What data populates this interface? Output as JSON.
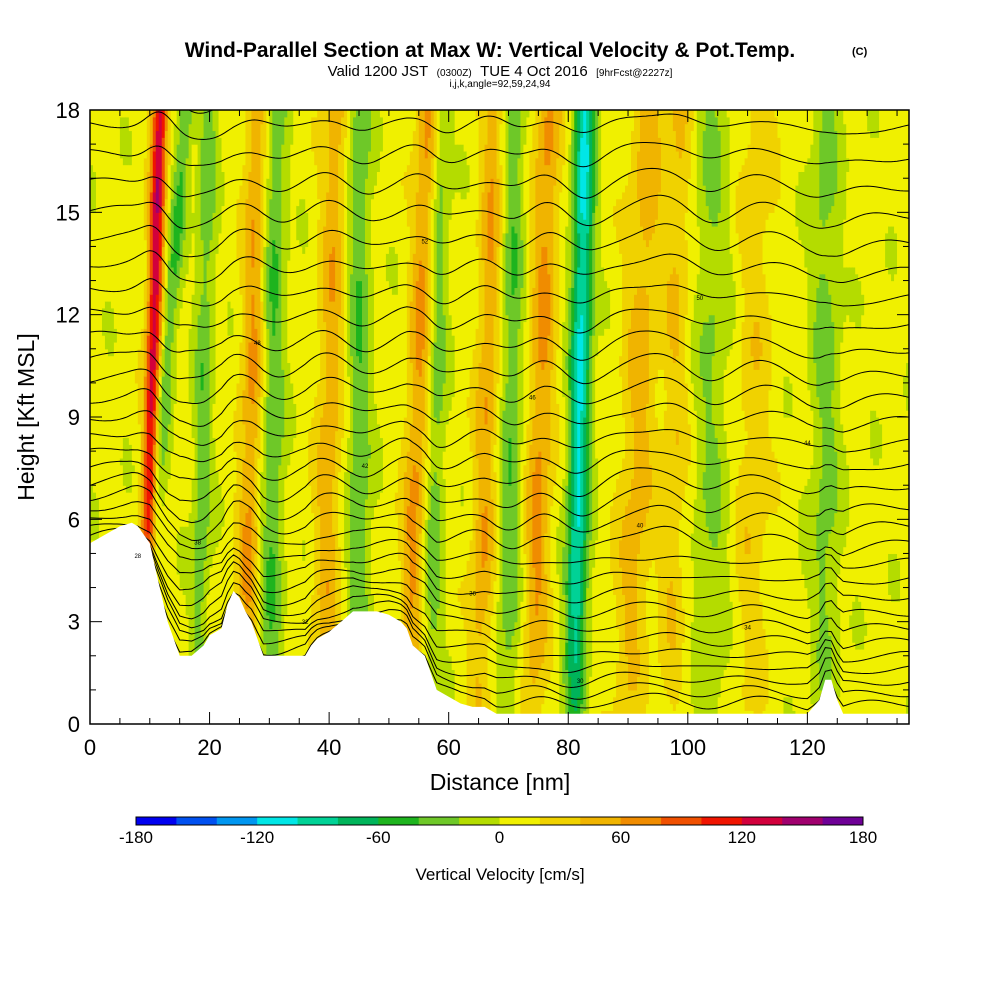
{
  "header": {
    "title": "Wind-Parallel Section at Max W: Vertical Velocity & Pot.Temp.",
    "title_mark": "(C)",
    "valid_prefix": "Valid 1200 JST",
    "valid_zulu": "(0300Z)",
    "valid_date": "TUE 4 Oct 2016",
    "forecast_tag": "[9hrFcst@2227z]",
    "grid_info": "i,j,k,angle=92,59,24,94"
  },
  "chart_data": {
    "type": "heatmap",
    "description_field": "vertical velocity filled contours with potential temperature line contours",
    "xlabel": "Distance [nm]",
    "ylabel": "Height [Kft MSL]",
    "xlim": [
      0,
      137
    ],
    "ylim": [
      0,
      18
    ],
    "x_ticks": [
      "0",
      "20",
      "40",
      "60",
      "80",
      "100",
      "120"
    ],
    "y_ticks": [
      "0",
      "3",
      "6",
      "9",
      "12",
      "15",
      "18"
    ],
    "colorbar": {
      "label": "Vertical Velocity [cm/s]",
      "min": -180,
      "max": 180,
      "step": 20,
      "tick_labels": [
        "-180",
        "-120",
        "-60",
        "0",
        "60",
        "120",
        "180"
      ],
      "colors": [
        "#0000f0",
        "#0050f0",
        "#0096f0",
        "#00e6e6",
        "#00d296",
        "#00b45a",
        "#1eb41e",
        "#6ec828",
        "#b4dc00",
        "#f0f000",
        "#f0d200",
        "#f0b400",
        "#f08c00",
        "#f05000",
        "#f01400",
        "#d2003c",
        "#a0006e",
        "#6e0096"
      ]
    },
    "terrain_kft": {
      "x": [
        0,
        5,
        7,
        8,
        10,
        11,
        13,
        15,
        17,
        19,
        20,
        22,
        23,
        24,
        25,
        26,
        27,
        28,
        29,
        31,
        33,
        35,
        36,
        37,
        38,
        40,
        42,
        44,
        46,
        48,
        50,
        52,
        53,
        54,
        56,
        57,
        58,
        60,
        62,
        64,
        66,
        68,
        70,
        72,
        74,
        76,
        78,
        80,
        82,
        84,
        86,
        88,
        90,
        92,
        94,
        96,
        98,
        100,
        102,
        104,
        106,
        108,
        110,
        112,
        114,
        116,
        118,
        120,
        122,
        123,
        124,
        125,
        126,
        128,
        130,
        137
      ],
      "y": [
        5.3,
        5.8,
        5.9,
        5.8,
        5.3,
        4.5,
        3.0,
        2.0,
        2.0,
        2.3,
        2.6,
        2.8,
        3.5,
        3.9,
        3.7,
        3.3,
        3.0,
        2.5,
        2.0,
        2.0,
        2.0,
        2.0,
        2.0,
        2.3,
        2.5,
        2.7,
        3.0,
        3.3,
        3.3,
        3.3,
        3.2,
        3.0,
        2.8,
        2.3,
        2.0,
        1.5,
        1.0,
        0.8,
        0.6,
        0.5,
        0.5,
        0.3,
        0.3,
        0.3,
        0.3,
        0.3,
        0.3,
        0.3,
        0.3,
        0.3,
        0.3,
        0.3,
        0.3,
        0.3,
        0.3,
        0.3,
        0.3,
        0.3,
        0.3,
        0.3,
        0.3,
        0.3,
        0.3,
        0.3,
        0.3,
        0.3,
        0.3,
        0.3,
        0.7,
        1.3,
        1.3,
        0.7,
        0.3,
        0.3,
        0.3,
        0.3
      ]
    },
    "updraft_bands": [
      {
        "x_base": 9,
        "tilt": 0.15,
        "width": 1.3,
        "amp": 125
      },
      {
        "x_base": 26,
        "tilt": 0.12,
        "width": 2.0,
        "amp": 55
      },
      {
        "x_base": 39,
        "tilt": 0.12,
        "width": 2.2,
        "amp": 45
      },
      {
        "x_base": 53,
        "tilt": 0.2,
        "width": 2.0,
        "amp": 55
      },
      {
        "x_base": 65,
        "tilt": 0.15,
        "width": 2.0,
        "amp": 50
      },
      {
        "x_base": 74,
        "tilt": 0.15,
        "width": 2.2,
        "amp": 55
      },
      {
        "x_base": 90,
        "tilt": 0.2,
        "width": 3.0,
        "amp": 40
      },
      {
        "x_base": 97,
        "tilt": 0.1,
        "width": 2.2,
        "amp": 30
      },
      {
        "x_base": 110,
        "tilt": 0.1,
        "width": 3.0,
        "amp": 25
      }
    ],
    "downdraft_bands": [
      {
        "x_base": 8,
        "tilt": 0.45,
        "width": 1.4,
        "amp": -50
      },
      {
        "x_base": 18,
        "tilt": 0.1,
        "width": 1.6,
        "amp": -40
      },
      {
        "x_base": 30,
        "tilt": 0.05,
        "width": 2.0,
        "amp": -50
      },
      {
        "x_base": 45,
        "tilt": 0.0,
        "width": 2.0,
        "amp": -45
      },
      {
        "x_base": 57,
        "tilt": 0.1,
        "width": 1.6,
        "amp": -40
      },
      {
        "x_base": 70,
        "tilt": 0.05,
        "width": 2.0,
        "amp": -45
      },
      {
        "x_base": 81,
        "tilt": 0.1,
        "width": 1.8,
        "amp": -110
      },
      {
        "x_base": 104,
        "tilt": 0.0,
        "width": 3.0,
        "amp": -30
      },
      {
        "x_base": 123,
        "tilt": 0.0,
        "width": 2.5,
        "amp": -35
      }
    ],
    "isentropes": {
      "count": 30,
      "bottom_kft": 0.6,
      "spacing_kft_low": 0.32,
      "spacing_kft_high": 0.95,
      "label_values": [
        "28",
        "30",
        "32",
        "34",
        "36",
        "38",
        "40",
        "42",
        "44",
        "46",
        "48",
        "50",
        "52"
      ]
    }
  }
}
